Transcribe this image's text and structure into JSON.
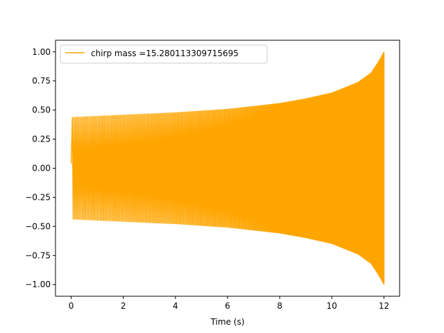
{
  "chart_data": {
    "type": "line",
    "title": "",
    "xlabel": "Time (s)",
    "ylabel": "",
    "xlim": [
      -0.6,
      12.6
    ],
    "ylim": [
      -1.1,
      1.1
    ],
    "xticks": [
      0,
      2,
      4,
      6,
      8,
      10,
      12
    ],
    "xtick_labels": [
      "0",
      "2",
      "4",
      "6",
      "8",
      "10",
      "12"
    ],
    "yticks": [
      1.0,
      0.75,
      0.5,
      0.25,
      0.0,
      -0.25,
      -0.5,
      -0.75,
      -1.0
    ],
    "ytick_labels": [
      "1.00",
      "0.75",
      "0.50",
      "0.25",
      "0.00",
      "−0.25",
      "−0.50",
      "−0.75",
      "−1.00"
    ],
    "grid": false,
    "legend_position": "upper-left",
    "series": [
      {
        "name": "chirp mass =15.280113309715695",
        "color": "#ffa500",
        "t_start": 0,
        "t_end": 12,
        "start_value": 0.04,
        "envelope": [
          {
            "t": 0.05,
            "amp": 0.44
          },
          {
            "t": 2,
            "amp": 0.46
          },
          {
            "t": 4,
            "amp": 0.48
          },
          {
            "t": 6,
            "amp": 0.51
          },
          {
            "t": 8,
            "amp": 0.56
          },
          {
            "t": 9,
            "amp": 0.6
          },
          {
            "t": 10,
            "amp": 0.65
          },
          {
            "t": 11,
            "amp": 0.74
          },
          {
            "t": 11.5,
            "amp": 0.82
          },
          {
            "t": 11.8,
            "amp": 0.92
          },
          {
            "t": 12,
            "amp": 1.0
          }
        ]
      }
    ]
  }
}
